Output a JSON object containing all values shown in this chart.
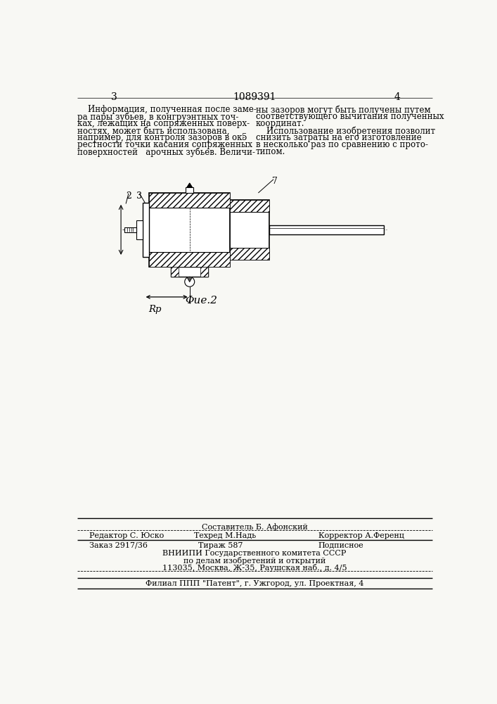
{
  "bg_color": "#f8f8f4",
  "page_num_left": "3",
  "page_num_center": "1089391",
  "page_num_right": "4",
  "fig_label": "Φue.2",
  "footer_sestavitel": "Составитель Б. Афонский",
  "footer_redaktor": "Редактор С. Юско",
  "footer_tehred": "Техред М.Надь",
  "footer_korrektor": "Корректор А.Ференц",
  "footer_zakaz": "Заказ 2917/36",
  "footer_tiraz": "Тираж 587",
  "footer_podpisnoe": "Подписное",
  "footer_vniipи": "ВНИИПИ Государственного комитета СССР",
  "footer_po_delam": "по делам изобретений и открытий",
  "footer_address": "113035, Москва, Ж-35, Раушская наб., д. 4/5",
  "footer_filial": "Филиал ППП \"Патент\", г. Ужгород, ул. Проектная, 4"
}
